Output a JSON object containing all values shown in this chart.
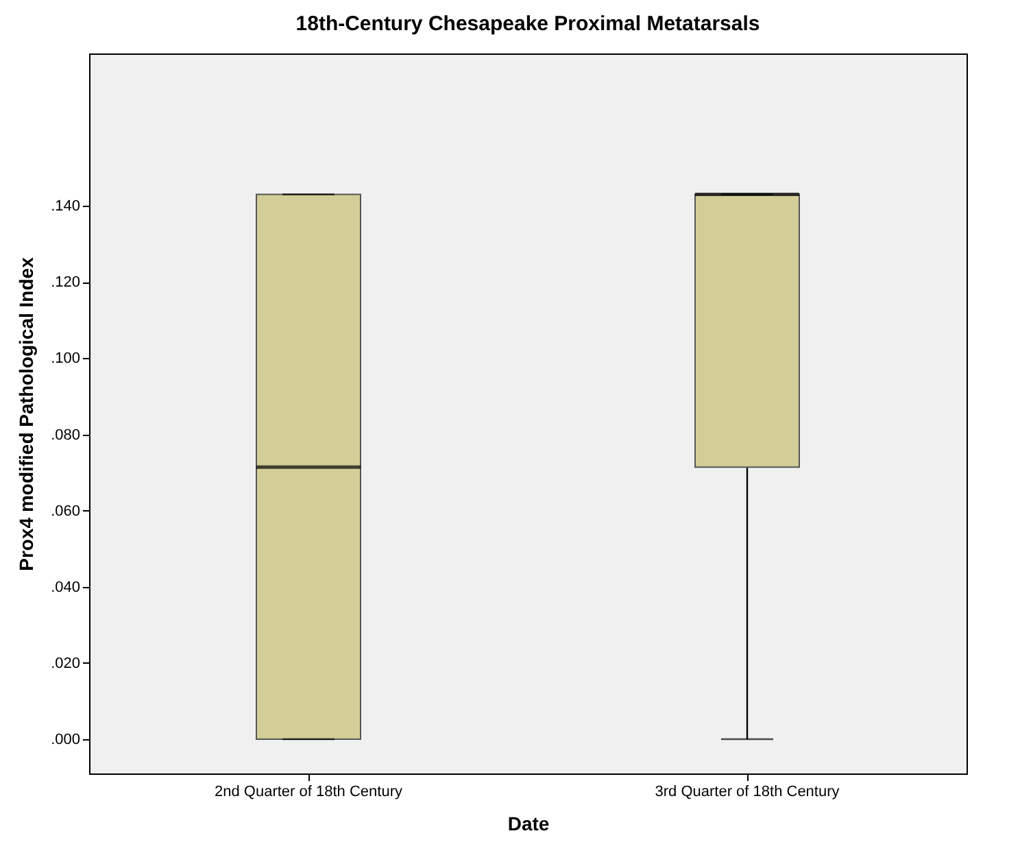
{
  "chart_data": {
    "type": "box",
    "title": "18th-Century Chesapeake Proximal Metatarsals",
    "xlabel": "Date",
    "ylabel": "Prox4 modified Pathological Index",
    "categories": [
      "2nd Quarter of 18th Century",
      "3rd Quarter of 18th Century"
    ],
    "series": [
      {
        "color": "#d3ce97",
        "boxes": [
          {
            "low": 0.0,
            "q1": 0.0,
            "median": 0.0714,
            "q3": 0.143,
            "high": 0.143
          },
          {
            "low": 0.0,
            "q1": 0.0714,
            "median": 0.143,
            "q3": 0.143,
            "high": 0.143
          }
        ]
      }
    ],
    "ylim": [
      -0.009,
      0.18
    ],
    "yticks": [
      {
        "value": 0,
        "label": ".000"
      },
      {
        "value": 0.02,
        "label": ".020"
      },
      {
        "value": 0.04,
        "label": ".040"
      },
      {
        "value": 0.06,
        "label": ".060"
      },
      {
        "value": 0.08,
        "label": ".080"
      },
      {
        "value": 0.1,
        "label": ".100"
      },
      {
        "value": 0.12,
        "label": ".120"
      },
      {
        "value": 0.14,
        "label": ".140"
      }
    ],
    "grid": false
  }
}
